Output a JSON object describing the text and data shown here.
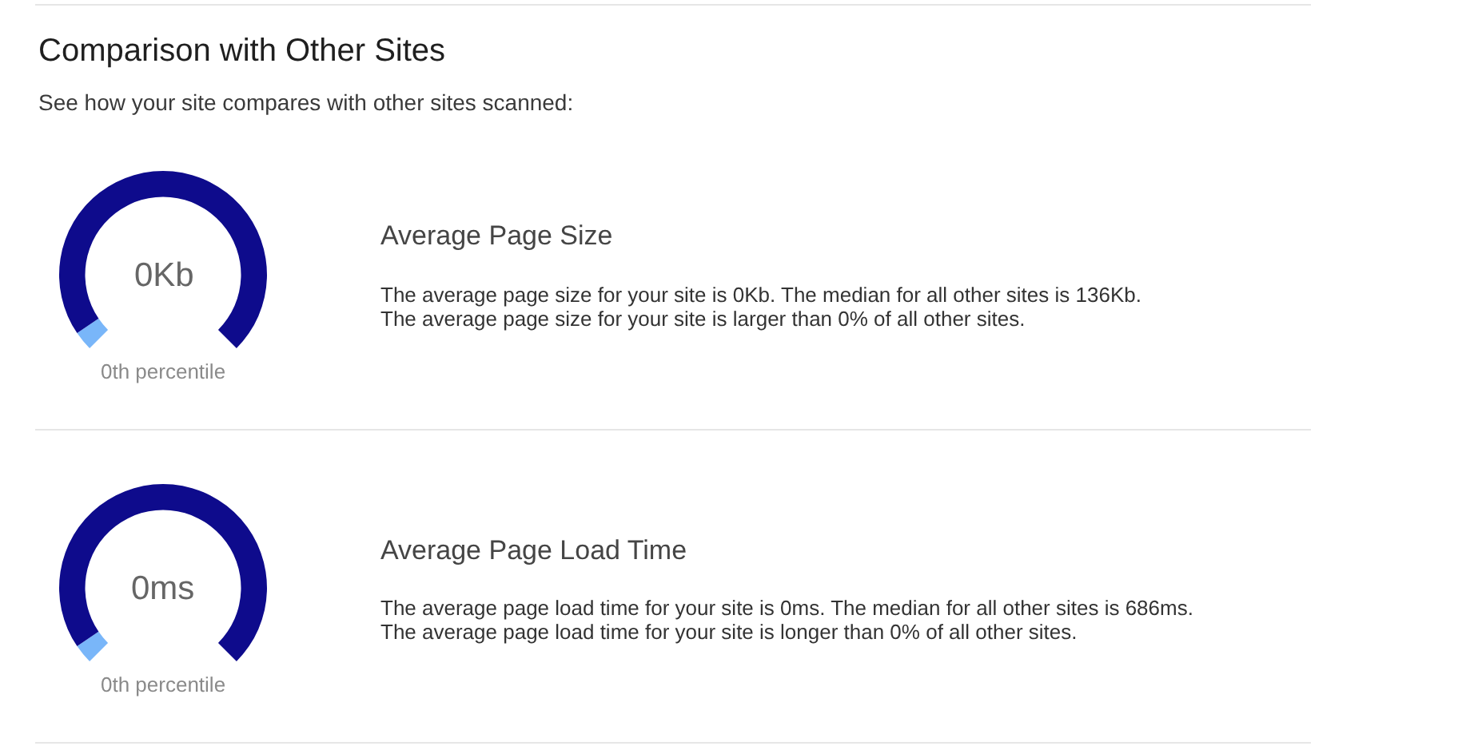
{
  "chart_data": [
    {
      "type": "other",
      "title": "Comparison with Other Sites",
      "subtitle": "See how your site compares with other sites scanned:"
    },
    {
      "type": "donut",
      "title": "Average Page Size",
      "categories": [
        null,
        null
      ],
      "values": [
        4,
        96
      ],
      "colors": [
        "#79b6f9",
        "#0e0b8c"
      ],
      "annotations": [
        "0Kb",
        "0th percentile",
        "The average page size for your site is 0Kb. The median for all other sites is 136Kb.",
        "The average page size for your site is larger than 0% of all other sites."
      ]
    },
    {
      "type": "donut",
      "title": "Average Page Load Time",
      "categories": [
        null,
        null
      ],
      "values": [
        4,
        96
      ],
      "colors": [
        "#79b6f9",
        "#0e0b8c"
      ],
      "annotations": [
        "0ms",
        "0th percentile",
        "The average page load time for your site is 0ms. The median for all other sites is 686ms.",
        "The average page load time for your site is longer than 0% of all other sites."
      ]
    }
  ]
}
